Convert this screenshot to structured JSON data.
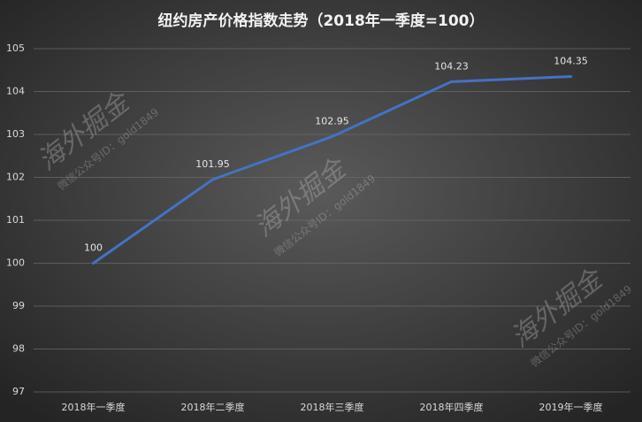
{
  "chart_data": {
    "type": "line",
    "title": "纽约房产价格指数走势（2018年一季度=100）",
    "categories": [
      "2018年一季度",
      "2018年二季度",
      "2018年三季度",
      "2018年四季度",
      "2019年一季度"
    ],
    "series": [
      {
        "name": "纽约房产价格指数",
        "color": "#4472c4",
        "values": [
          100,
          101.95,
          102.95,
          104.23,
          104.35
        ]
      }
    ],
    "ylim": [
      97,
      105
    ],
    "yticks": [
      97,
      98,
      99,
      100,
      101,
      102,
      103,
      104,
      105
    ],
    "grid": true,
    "watermark": {
      "text": "海外掘金",
      "subtext": "微信公众号ID：gold1849"
    }
  }
}
